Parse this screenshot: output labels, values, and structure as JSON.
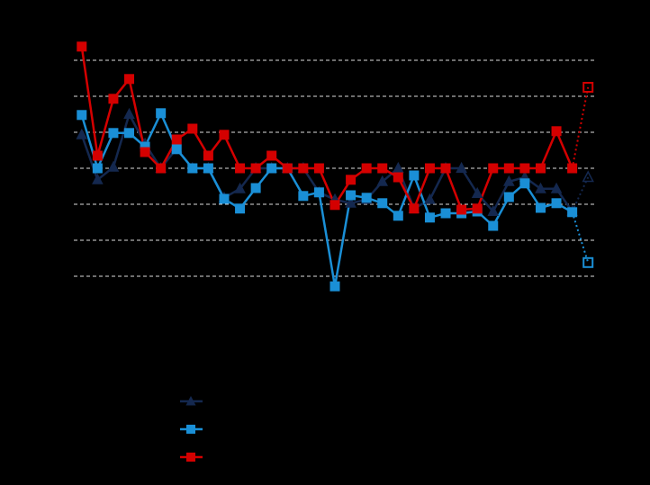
{
  "chart_data": {
    "type": "line",
    "categories": [
      null,
      null,
      null,
      null,
      null,
      null,
      null,
      null,
      null,
      null,
      null,
      null,
      null,
      null,
      null,
      null,
      null,
      null,
      null,
      null,
      null,
      null,
      null,
      null,
      null,
      null,
      null,
      null,
      null,
      null,
      null,
      null,
      null
    ],
    "ylim": [
      -1,
      7
    ],
    "yticks": [
      0,
      1,
      2,
      3,
      4,
      5,
      6
    ],
    "grid": true,
    "projected_last_point": true,
    "series": [
      {
        "color": "#14284f",
        "marker": "triangle",
        "values": [
          3.93,
          2.68,
          3.03,
          4.5,
          3.68,
          3.0,
          3.55,
          3.0,
          3.0,
          2.18,
          2.43,
          3.0,
          3.0,
          3.0,
          3.0,
          2.33,
          2.13,
          2.03,
          2.13,
          2.63,
          3.0,
          1.88,
          2.13,
          3.0,
          3.0,
          2.3,
          1.8,
          2.63,
          2.75,
          2.43,
          2.43,
          1.8,
          2.75
        ]
      },
      {
        "color": "#1a8fd6",
        "marker": "square",
        "values": [
          4.48,
          3.0,
          3.98,
          3.98,
          3.6,
          4.53,
          3.53,
          3.0,
          3.0,
          2.15,
          1.88,
          2.45,
          3.0,
          3.0,
          2.23,
          2.33,
          -0.28,
          2.25,
          2.18,
          2.03,
          1.68,
          2.8,
          1.63,
          1.75,
          1.75,
          1.8,
          1.4,
          2.2,
          2.58,
          1.9,
          2.03,
          1.78,
          0.38
        ]
      },
      {
        "color": "#d40000",
        "marker": "square",
        "values": [
          6.38,
          3.35,
          4.93,
          5.48,
          3.45,
          3.0,
          3.8,
          4.1,
          3.35,
          3.93,
          3.0,
          3.0,
          3.35,
          3.0,
          3.0,
          3.0,
          1.98,
          2.68,
          3.0,
          3.0,
          2.75,
          1.88,
          3.0,
          3.0,
          1.85,
          1.88,
          3.0,
          3.0,
          3.0,
          3.0,
          4.03,
          3.0,
          5.25
        ]
      }
    ]
  }
}
